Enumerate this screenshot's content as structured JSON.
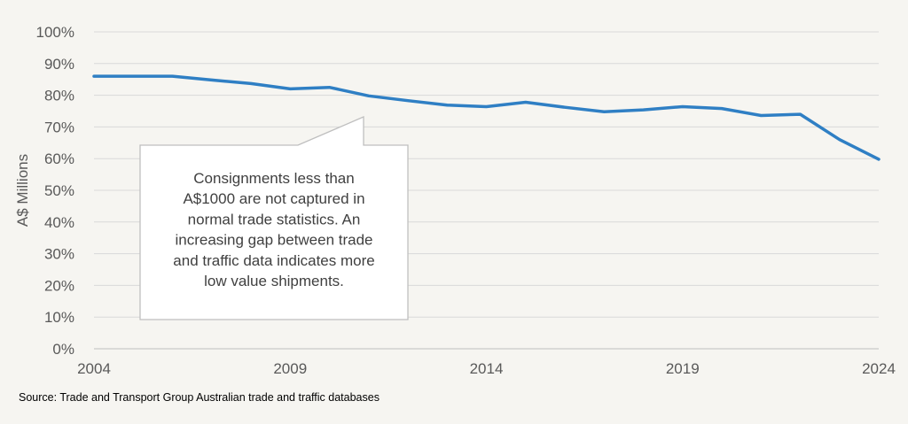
{
  "chart_data": {
    "type": "line",
    "title": "",
    "xlabel": "",
    "ylabel": "A$ Millions",
    "xlim": [
      2004,
      2024
    ],
    "ylim": [
      0,
      100
    ],
    "x_ticks": [
      "2004",
      "2009",
      "2014",
      "2019",
      "2024"
    ],
    "y_ticks": [
      "0%",
      "10%",
      "20%",
      "30%",
      "40%",
      "50%",
      "60%",
      "70%",
      "80%",
      "90%",
      "100%"
    ],
    "grid": true,
    "legend": "none",
    "series": [
      {
        "color": "#2f7fc4",
        "x": [
          2004,
          2005,
          2006,
          2007,
          2008,
          2009,
          2010,
          2011,
          2012,
          2013,
          2014,
          2015,
          2016,
          2017,
          2018,
          2019,
          2020,
          2021,
          2022,
          2023,
          2024
        ],
        "values": [
          86,
          86,
          86,
          84.8,
          83.7,
          82,
          82.5,
          79.8,
          78.3,
          76.9,
          76.4,
          77.8,
          76.2,
          74.8,
          75.4,
          76.4,
          75.8,
          73.6,
          74,
          66,
          59.8
        ]
      }
    ],
    "annotation": {
      "lines": [
        "Consignments less than",
        "A$1000 are not captured in",
        "normal trade statistics. An",
        "increasing gap between trade",
        "and traffic data indicates more",
        "low value shipments."
      ]
    }
  },
  "source": "Source: Trade and Transport Group Australian trade and traffic databases"
}
